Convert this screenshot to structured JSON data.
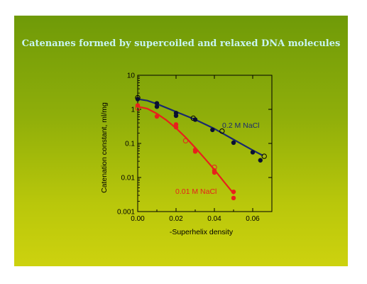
{
  "slide": {
    "title": "Catenanes formed by supercoiled and relaxed DNA molecules",
    "background_top": "#6f9a08",
    "background_bottom": "#cdd20e",
    "title_color": "#c8f4f2"
  },
  "chart_data": {
    "type": "scatter",
    "title": "",
    "xlabel": "-Superhelix density",
    "ylabel": "Catenation constant, ml/mg",
    "xlim": [
      0.0,
      0.07
    ],
    "ylim": [
      0.001,
      10
    ],
    "yscale": "log",
    "xticks": [
      "0.00",
      "0.02",
      "0.04",
      "0.06"
    ],
    "yticks": [
      "0.001",
      "0.01",
      "0.1",
      "1",
      "10"
    ],
    "grid": false,
    "series": [
      {
        "name": "0.2 M NaCl",
        "color": "#1a2a6e",
        "filled_points": [
          [
            0.0,
            2.0
          ],
          [
            0.01,
            1.5
          ],
          [
            0.01,
            1.2
          ],
          [
            0.02,
            0.78
          ],
          [
            0.02,
            0.65
          ],
          [
            0.03,
            0.5
          ],
          [
            0.039,
            0.25
          ],
          [
            0.05,
            0.105
          ],
          [
            0.06,
            0.055
          ],
          [
            0.064,
            0.032
          ]
        ],
        "open_points": [
          [
            0.0,
            2.2
          ],
          [
            0.029,
            0.55
          ],
          [
            0.044,
            0.23
          ],
          [
            0.066,
            0.042
          ]
        ],
        "fit_line": [
          [
            0.0,
            2.0
          ],
          [
            0.005,
            1.8
          ],
          [
            0.01,
            1.45
          ],
          [
            0.02,
            0.85
          ],
          [
            0.03,
            0.5
          ],
          [
            0.04,
            0.27
          ],
          [
            0.05,
            0.13
          ],
          [
            0.06,
            0.063
          ],
          [
            0.065,
            0.045
          ]
        ]
      },
      {
        "name": "0.01 M NaCl",
        "color": "#e8201c",
        "filled_points": [
          [
            0.0,
            1.3
          ],
          [
            0.01,
            0.62
          ],
          [
            0.02,
            0.36
          ],
          [
            0.02,
            0.3
          ],
          [
            0.03,
            0.065
          ],
          [
            0.03,
            0.058
          ],
          [
            0.04,
            0.016
          ],
          [
            0.04,
            0.014
          ],
          [
            0.05,
            0.0038
          ],
          [
            0.05,
            0.0025
          ]
        ],
        "open_points": [
          [
            0.0,
            1.1
          ],
          [
            0.025,
            0.12
          ],
          [
            0.04,
            0.02
          ]
        ],
        "fit_line": [
          [
            0.0,
            1.2
          ],
          [
            0.005,
            1.05
          ],
          [
            0.01,
            0.75
          ],
          [
            0.015,
            0.48
          ],
          [
            0.02,
            0.28
          ],
          [
            0.025,
            0.15
          ],
          [
            0.03,
            0.075
          ],
          [
            0.035,
            0.036
          ],
          [
            0.04,
            0.017
          ],
          [
            0.045,
            0.0075
          ],
          [
            0.05,
            0.0034
          ]
        ]
      }
    ]
  }
}
